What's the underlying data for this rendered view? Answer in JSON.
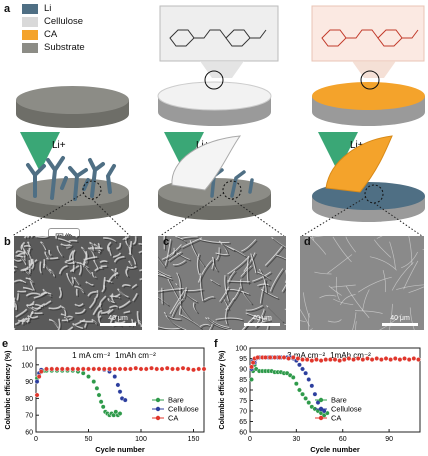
{
  "figure": {
    "panel_labels": {
      "a": "a",
      "b": "b",
      "c": "c",
      "d": "d",
      "e": "e",
      "f": "f"
    },
    "legend": [
      {
        "label": "Li",
        "color": "#4f6f84"
      },
      {
        "label": "Cellulose",
        "color": "#d9d9d9"
      },
      {
        "label": "CA",
        "color": "#f4a32b"
      },
      {
        "label": "Substrate",
        "color": "#8c8c86"
      }
    ],
    "arrow_label": "Li+",
    "badge_text": "图像",
    "scale_bars": {
      "b": "40 μm",
      "c": "40 μm",
      "d": "40 μm"
    }
  },
  "chart_data": [
    {
      "type": "scatter",
      "panel": "e",
      "annotation_current": "1 mA cm⁻²",
      "annotation_capacity": "1mAh cm⁻²",
      "xlabel": "Cycle number",
      "ylabel": "Columbic efficiency (%)",
      "xlim": [
        0,
        160
      ],
      "ylim": [
        60,
        110
      ],
      "xticks": [
        0,
        50,
        100,
        150
      ],
      "yticks": [
        60,
        70,
        80,
        90,
        100,
        110
      ],
      "legend_position": "bottom-right",
      "series": [
        {
          "name": "Bare",
          "color": "#2e9a4a",
          "x": [
            1,
            3,
            5,
            8,
            10,
            15,
            20,
            25,
            30,
            35,
            40,
            45,
            50,
            55,
            58,
            60,
            62,
            64,
            66,
            68,
            70,
            72,
            74,
            76,
            78,
            80
          ],
          "y": [
            92,
            95,
            96,
            96.5,
            96.5,
            96.5,
            96.5,
            96.5,
            96.5,
            96.5,
            96,
            95,
            93,
            90,
            86,
            82,
            78,
            75,
            72,
            71,
            70,
            71,
            70,
            72,
            70,
            71
          ]
        },
        {
          "name": "Cellulose",
          "color": "#2c3e9e",
          "x": [
            1,
            3,
            5,
            10,
            15,
            20,
            25,
            30,
            35,
            40,
            45,
            50,
            55,
            60,
            65,
            70,
            75,
            78,
            80,
            82,
            85
          ],
          "y": [
            90,
            95,
            97,
            97.5,
            97.5,
            97.5,
            97.5,
            97.5,
            97.5,
            97.5,
            97.5,
            97.5,
            97.5,
            97.5,
            97,
            96,
            93,
            88,
            84,
            80,
            79
          ]
        },
        {
          "name": "CA",
          "color": "#e0362c",
          "x": [
            1,
            3,
            5,
            10,
            15,
            20,
            25,
            30,
            35,
            40,
            45,
            50,
            55,
            60,
            65,
            70,
            75,
            80,
            85,
            90,
            95,
            100,
            105,
            110,
            115,
            120,
            125,
            130,
            135,
            140,
            145,
            150,
            155,
            160
          ],
          "y": [
            82,
            93,
            96,
            97.5,
            97.5,
            97.5,
            97.5,
            97.5,
            97.5,
            97.5,
            97.5,
            97.5,
            97.5,
            97.5,
            97.5,
            97.5,
            97.5,
            97.5,
            97.5,
            97.5,
            98,
            97.5,
            97.5,
            98,
            97.5,
            97.5,
            98,
            97.5,
            97.5,
            98,
            97.5,
            97,
            97.5,
            97.5
          ]
        }
      ]
    },
    {
      "type": "scatter",
      "panel": "f",
      "annotation_current": "3 mA cm⁻²",
      "annotation_capacity": "1mAh cm⁻²",
      "xlabel": "Cycle number",
      "ylabel": "Columbic efficiency (%)",
      "xlim": [
        0,
        110
      ],
      "ylim": [
        60,
        100
      ],
      "xticks": [
        0,
        30,
        60,
        90
      ],
      "yticks": [
        60,
        65,
        70,
        75,
        80,
        85,
        90,
        95,
        100
      ],
      "legend_position": "bottom-center",
      "series": [
        {
          "name": "Bare",
          "color": "#2e9a4a",
          "x": [
            1,
            2,
            3,
            4,
            6,
            8,
            10,
            12,
            14,
            16,
            18,
            20,
            22,
            24,
            26,
            28,
            30,
            32,
            34,
            36,
            38,
            40,
            42,
            44,
            46,
            48,
            50
          ],
          "y": [
            85,
            89,
            92,
            90,
            89,
            89,
            89,
            89,
            89,
            88.5,
            88.5,
            88.5,
            88,
            88,
            87,
            86,
            83,
            80,
            78,
            76,
            74,
            72,
            71,
            70,
            69,
            68,
            69
          ]
        },
        {
          "name": "Cellulose",
          "color": "#2c3e9e",
          "x": [
            1,
            2,
            3,
            4,
            6,
            8,
            10,
            12,
            14,
            16,
            18,
            20,
            22,
            24,
            26,
            28,
            30,
            32,
            34,
            36,
            38,
            40,
            42,
            44,
            46,
            48
          ],
          "y": [
            90,
            94,
            93,
            95,
            95.5,
            95.5,
            95.5,
            95.5,
            95.5,
            95.5,
            95.5,
            95.5,
            95.5,
            95.5,
            95.5,
            95,
            94,
            92,
            90,
            88,
            85,
            82,
            78,
            74,
            71,
            70
          ]
        },
        {
          "name": "CA",
          "color": "#e0362c",
          "x": [
            1,
            2,
            3,
            5,
            8,
            10,
            13,
            16,
            19,
            22,
            25,
            28,
            31,
            34,
            37,
            40,
            43,
            46,
            49,
            52,
            55,
            58,
            61,
            64,
            67,
            70,
            73,
            76,
            79,
            82,
            85,
            88,
            91,
            94,
            97,
            100,
            103,
            106,
            109
          ],
          "y": [
            91,
            93,
            95,
            95.5,
            95.5,
            95.5,
            95.5,
            95.5,
            95.5,
            95.5,
            95,
            95.5,
            95,
            94.5,
            94.5,
            94,
            94.5,
            94,
            94.5,
            94.5,
            94.5,
            94,
            94.5,
            95,
            94.5,
            95,
            94.5,
            95,
            94.5,
            95,
            94.5,
            95,
            94.5,
            95,
            94.5,
            95,
            94.5,
            95,
            94.5
          ]
        }
      ]
    }
  ]
}
